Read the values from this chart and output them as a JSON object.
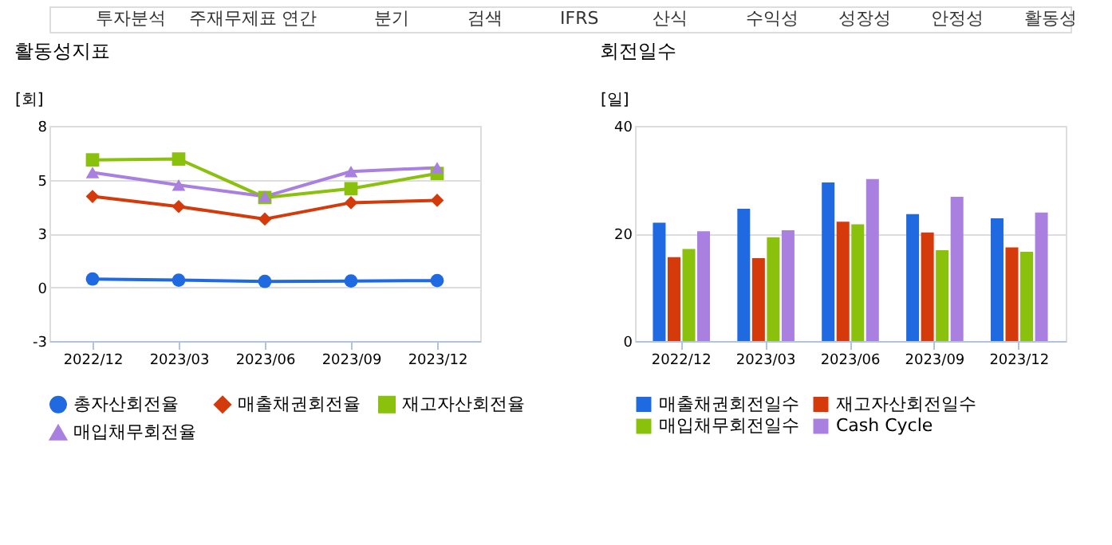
{
  "chart_data": [
    {
      "type": "line",
      "title": "활동성지표",
      "ylabel": "[회]",
      "annotations": [
        "투자분석",
        "주재무제표",
        "연간",
        "분기",
        "검색",
        "IFRS",
        "산식",
        "수익성",
        "성장성",
        "안정성",
        "활동성"
      ],
      "categories": [
        "2022/12",
        "2023/03",
        "2023/06",
        "2023/09",
        "2023/12"
      ],
      "ylim": [
        -2.5,
        7.5
      ],
      "yticks": [
        {
          "value": -2.5,
          "label": "-3"
        },
        0,
        {
          "value": 2.5,
          "label": "3"
        },
        5,
        {
          "value": 7.5,
          "label": "8"
        }
      ],
      "grid": "y",
      "legend": "bottom",
      "series": [
        {
          "name": "총자산회전율",
          "color": "#1f6ae0",
          "marker": "circle",
          "values": [
            0.38,
            0.33,
            0.27,
            0.29,
            0.31
          ]
        },
        {
          "name": "매출채권회전율",
          "color": "#d43a0a",
          "marker": "diamond",
          "values": [
            4.22,
            3.75,
            3.17,
            3.93,
            4.04
          ]
        },
        {
          "name": "재고자산회전율",
          "color": "#8ac10c",
          "marker": "square",
          "values": [
            5.92,
            5.96,
            4.17,
            4.58,
            5.29
          ]
        },
        {
          "name": "매입채무회전율",
          "color": "#a97fe0",
          "marker": "triangle",
          "values": [
            5.33,
            4.75,
            4.22,
            5.38,
            5.56
          ]
        }
      ]
    },
    {
      "type": "bar",
      "title": "회전일수",
      "ylabel": "[일]",
      "categories": [
        "2022/12",
        "2023/03",
        "2023/06",
        "2023/09",
        "2023/12"
      ],
      "ylim": [
        0,
        40
      ],
      "yticks": [
        0,
        20,
        40
      ],
      "grid": "y",
      "legend": "bottom",
      "series": [
        {
          "name": "매출채권회전일수",
          "color": "#1f6ae0",
          "values": [
            22.0,
            24.6,
            29.5,
            23.6,
            22.8
          ]
        },
        {
          "name": "재고자산회전일수",
          "color": "#d43a0a",
          "values": [
            15.6,
            15.4,
            22.2,
            20.2,
            17.4
          ]
        },
        {
          "name": "매입채무회전일수",
          "color": "#8ac10c",
          "values": [
            17.1,
            19.3,
            21.7,
            16.9,
            16.6
          ]
        },
        {
          "name": "Cash Cycle",
          "color": "#a97fe0",
          "values": [
            20.4,
            20.6,
            30.1,
            26.8,
            23.9
          ]
        }
      ]
    }
  ]
}
